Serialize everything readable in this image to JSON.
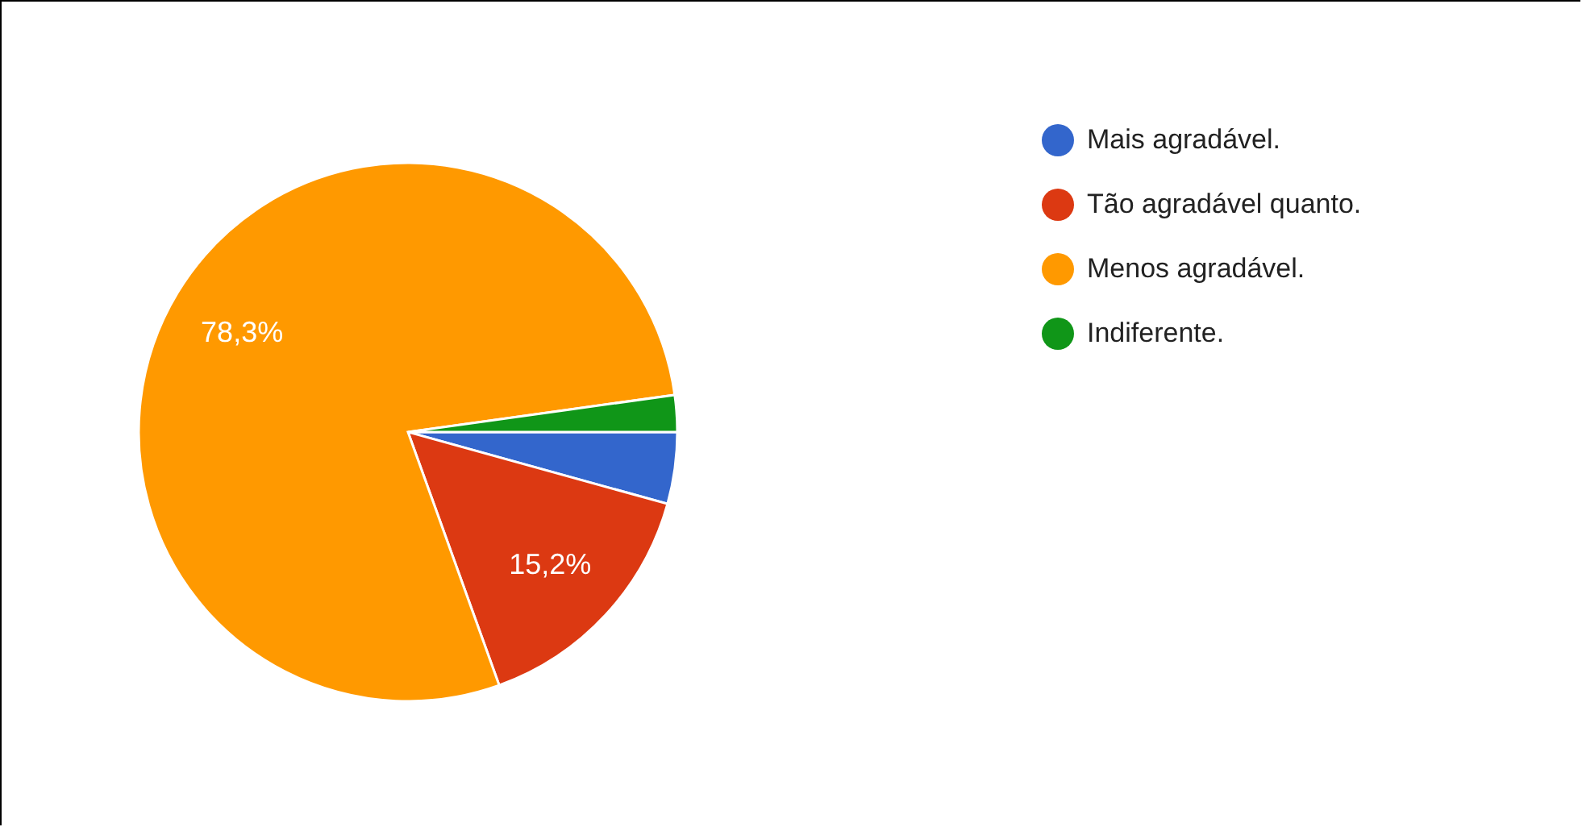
{
  "chart_data": {
    "type": "pie",
    "categories": [
      "Mais agradável.",
      "Tão agradável quanto.",
      "Menos agradável.",
      "Indiferente."
    ],
    "values": [
      4.3,
      15.2,
      78.3,
      2.2
    ],
    "colors": [
      "#3366cc",
      "#dc3912",
      "#ff9900",
      "#109618"
    ],
    "value_labels": [
      null,
      "15,2%",
      "78,3%",
      null
    ],
    "legend": "top right"
  }
}
